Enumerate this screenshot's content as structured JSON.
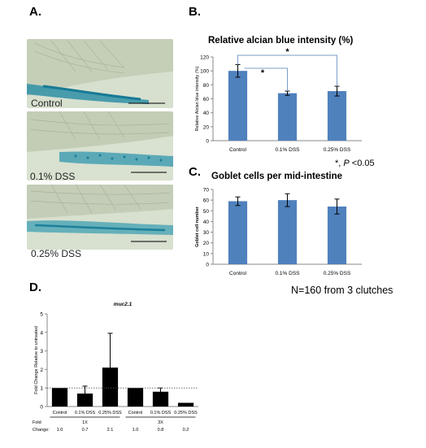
{
  "panels": {
    "a": "A.",
    "b": "B.",
    "c": "C.",
    "d": "D."
  },
  "photos": [
    {
      "label": "Control"
    },
    {
      "label": "0.1% DSS"
    },
    {
      "label": "0.25% DSS"
    }
  ],
  "significance_note": {
    "prefix": "*, ",
    "p": "P",
    "suffix": " <0.05"
  },
  "sample_note": "N=160 from 3 clutches",
  "colors": {
    "bar_blue": "#4f81bd",
    "bar_black": "#000000",
    "photo_bg": "#d9e3d2"
  },
  "chart_data": [
    {
      "type": "bar",
      "title": "Relative alcian blue intensity (%)",
      "ylabel": "Relative Alcian blue intensity (%)",
      "categories": [
        "Control",
        "0.1% DSS",
        "0.25% DSS"
      ],
      "values": [
        100,
        68,
        71
      ],
      "errors": [
        9,
        3,
        7
      ],
      "ylim": [
        0,
        120
      ],
      "yticks": [
        0,
        20,
        40,
        60,
        80,
        100,
        120
      ],
      "significance": [
        {
          "from": "Control",
          "to": "0.1% DSS",
          "label": "*"
        },
        {
          "from": "Control",
          "to": "0.25% DSS",
          "label": "*"
        }
      ],
      "grid": false
    },
    {
      "type": "bar",
      "title": "Goblet cells per mid-intestine",
      "ylabel": "Goblet cell number",
      "categories": [
        "Control",
        "0.1% DSS",
        "0.25% DSS"
      ],
      "values": [
        59,
        60,
        54
      ],
      "errors": [
        4,
        6,
        7
      ],
      "ylim": [
        0,
        70
      ],
      "yticks": [
        0,
        10,
        20,
        30,
        40,
        50,
        60,
        70
      ],
      "grid": false
    },
    {
      "type": "bar",
      "title": "muc2.1",
      "ylabel": "Fold Change Relative to untreated",
      "categories": [
        "Control",
        "0.1% DSS",
        "0.25% DSS",
        "Control",
        "0.1% DSS",
        "0.25% DSS"
      ],
      "groups": [
        {
          "label": "1X",
          "span": [
            0,
            2
          ]
        },
        {
          "label": "3X",
          "span": [
            3,
            5
          ]
        }
      ],
      "values": [
        1.0,
        0.7,
        2.1,
        1.0,
        0.8,
        0.2
      ],
      "errors": [
        0,
        0.4,
        1.85,
        0,
        0.2,
        0
      ],
      "ylim": [
        0,
        5
      ],
      "yticks": [
        0,
        1,
        2,
        3,
        4,
        5
      ],
      "reference_line": 1.0,
      "fold_change_label": [
        "Fold",
        "Change:"
      ],
      "fold_change_values": [
        "1.0",
        "0.7",
        "2.1",
        "1.0",
        "0.8",
        "0.2"
      ],
      "grid": false
    }
  ]
}
